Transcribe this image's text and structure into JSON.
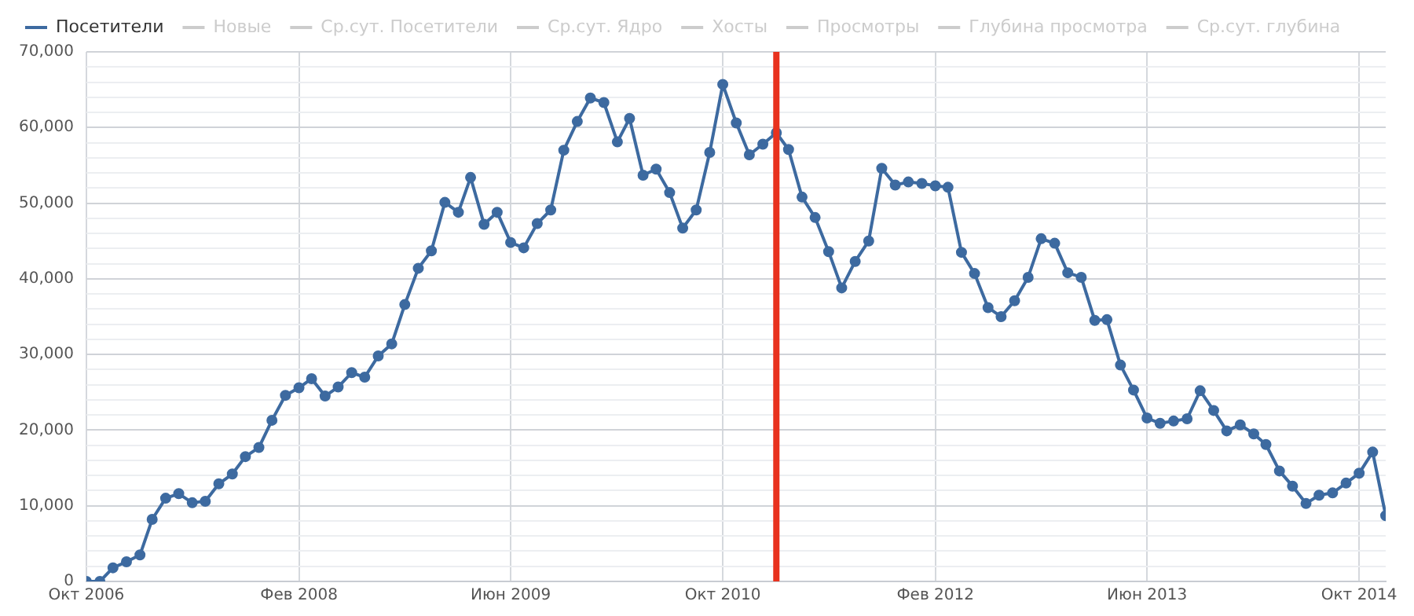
{
  "chart_data": {
    "type": "line",
    "x": [
      "2006-10",
      "2006-11",
      "2006-12",
      "2007-01",
      "2007-02",
      "2007-03",
      "2007-04",
      "2007-05",
      "2007-06",
      "2007-07",
      "2007-08",
      "2007-09",
      "2007-10",
      "2007-11",
      "2007-12",
      "2008-01",
      "2008-02",
      "2008-03",
      "2008-04",
      "2008-05",
      "2008-06",
      "2008-07",
      "2008-08",
      "2008-09",
      "2008-10",
      "2008-11",
      "2008-12",
      "2009-01",
      "2009-02",
      "2009-03",
      "2009-04",
      "2009-05",
      "2009-06",
      "2009-07",
      "2009-08",
      "2009-09",
      "2009-10",
      "2009-11",
      "2009-12",
      "2010-01",
      "2010-02",
      "2010-03",
      "2010-04",
      "2010-05",
      "2010-06",
      "2010-07",
      "2010-08",
      "2010-09",
      "2010-10",
      "2010-11",
      "2010-12",
      "2011-01",
      "2011-02",
      "2011-03",
      "2011-04",
      "2011-05",
      "2011-06",
      "2011-07",
      "2011-08",
      "2011-09",
      "2011-10",
      "2011-11",
      "2011-12",
      "2012-01",
      "2012-02",
      "2012-03",
      "2012-04",
      "2012-05",
      "2012-06",
      "2012-07",
      "2012-08",
      "2012-09",
      "2012-10",
      "2012-11",
      "2012-12",
      "2013-01",
      "2013-02",
      "2013-03",
      "2013-04",
      "2013-05",
      "2013-06",
      "2013-07",
      "2013-08",
      "2013-09",
      "2013-10",
      "2013-11",
      "2013-12",
      "2014-01",
      "2014-02",
      "2014-03",
      "2014-04",
      "2014-05",
      "2014-06",
      "2014-07",
      "2014-08",
      "2014-09",
      "2014-10",
      "2014-11",
      "2014-12"
    ],
    "series": [
      {
        "name": "Посетители",
        "color": "#3d6aa0",
        "values": [
          0,
          0,
          1800,
          2600,
          3500,
          8200,
          11000,
          11600,
          10400,
          10600,
          12900,
          14200,
          16500,
          17700,
          21300,
          24600,
          25600,
          26800,
          24500,
          25700,
          27600,
          27000,
          29800,
          31400,
          36600,
          41400,
          43700,
          50100,
          48800,
          53400,
          47200,
          48800,
          44800,
          44100,
          47300,
          49100,
          57000,
          60800,
          63900,
          63300,
          58100,
          61200,
          53700,
          54500,
          51400,
          46700,
          49100,
          56700,
          65700,
          60600,
          56400,
          57800,
          59300,
          57100,
          50800,
          48100,
          43600,
          38800,
          42300,
          45000,
          54600,
          52400,
          52800,
          52600,
          52300,
          52100,
          43500,
          40700,
          36200,
          35000,
          37100,
          40200,
          45300,
          44700,
          40800,
          40200,
          34500,
          34600,
          28600,
          25300,
          21600,
          20900,
          21200,
          21500,
          25200,
          22600,
          19900,
          20700,
          19500,
          18100,
          14600,
          12600,
          10300,
          11400,
          11700,
          13000,
          14300,
          17100,
          8700
        ]
      },
      {
        "name": "Новые",
        "color": "#cccccc",
        "values": [
          null,
          null,
          null,
          null,
          null,
          null,
          null,
          null,
          null,
          null,
          null,
          null,
          null,
          null,
          null,
          null,
          null,
          null,
          null,
          null,
          null,
          null,
          null,
          null,
          null,
          null,
          null,
          null,
          null,
          null,
          null,
          null,
          null,
          null,
          null,
          null,
          null,
          null,
          null,
          null,
          null,
          null,
          null,
          null,
          null,
          null,
          null,
          null,
          null,
          null,
          null,
          null,
          null,
          null,
          null,
          null,
          null,
          null,
          null,
          null,
          null,
          null,
          null,
          null,
          null,
          null,
          null,
          null,
          null,
          null,
          null,
          null,
          null,
          null,
          null,
          null,
          null,
          null,
          null,
          null,
          null,
          null,
          null,
          null,
          null,
          null,
          null,
          null,
          null,
          null,
          null,
          null,
          null,
          null,
          null,
          null,
          null,
          null,
          null
        ]
      },
      {
        "name": "Ср.сут. Посетители",
        "color": "#cccccc",
        "values": [
          null,
          null,
          null,
          null,
          null,
          null,
          null,
          null,
          null,
          null,
          null,
          null,
          null,
          null,
          null,
          null,
          null,
          null,
          null,
          null,
          null,
          null,
          null,
          null,
          null,
          null,
          null,
          null,
          null,
          null,
          null,
          null,
          null,
          null,
          null,
          null,
          null,
          null,
          null,
          null,
          null,
          null,
          null,
          null,
          null,
          null,
          null,
          null,
          null,
          null,
          null,
          null,
          null,
          null,
          null,
          null,
          null,
          null,
          null,
          null,
          null,
          null,
          null,
          null,
          null,
          null,
          null,
          null,
          null,
          null,
          null,
          null,
          null,
          null,
          null,
          null,
          null,
          null,
          null,
          null,
          null,
          null,
          null,
          null,
          null,
          null,
          null,
          null,
          null,
          null,
          null,
          null,
          null,
          null,
          null,
          null,
          null,
          null,
          null
        ]
      },
      {
        "name": "Ср.сут. Ядро",
        "color": "#cccccc",
        "values": [
          null,
          null,
          null,
          null,
          null,
          null,
          null,
          null,
          null,
          null,
          null,
          null,
          null,
          null,
          null,
          null,
          null,
          null,
          null,
          null,
          null,
          null,
          null,
          null,
          null,
          null,
          null,
          null,
          null,
          null,
          null,
          null,
          null,
          null,
          null,
          null,
          null,
          null,
          null,
          null,
          null,
          null,
          null,
          null,
          null,
          null,
          null,
          null,
          null,
          null,
          null,
          null,
          null,
          null,
          null,
          null,
          null,
          null,
          null,
          null,
          null,
          null,
          null,
          null,
          null,
          null,
          null,
          null,
          null,
          null,
          null,
          null,
          null,
          null,
          null,
          null,
          null,
          null,
          null,
          null,
          null,
          null,
          null,
          null,
          null,
          null,
          null,
          null,
          null,
          null,
          null,
          null,
          null,
          null,
          null,
          null,
          null,
          null,
          null
        ]
      },
      {
        "name": "Хосты",
        "color": "#cccccc",
        "values": [
          null,
          null,
          null,
          null,
          null,
          null,
          null,
          null,
          null,
          null,
          null,
          null,
          null,
          null,
          null,
          null,
          null,
          null,
          null,
          null,
          null,
          null,
          null,
          null,
          null,
          null,
          null,
          null,
          null,
          null,
          null,
          null,
          null,
          null,
          null,
          null,
          null,
          null,
          null,
          null,
          null,
          null,
          null,
          null,
          null,
          null,
          null,
          null,
          null,
          null,
          null,
          null,
          null,
          null,
          null,
          null,
          null,
          null,
          null,
          null,
          null,
          null,
          null,
          null,
          null,
          null,
          null,
          null,
          null,
          null,
          null,
          null,
          null,
          null,
          null,
          null,
          null,
          null,
          null,
          null,
          null,
          null,
          null,
          null,
          null,
          null,
          null,
          null,
          null,
          null,
          null,
          null,
          null,
          null,
          null,
          null,
          null,
          null,
          null
        ]
      },
      {
        "name": "Просмотры",
        "color": "#cccccc",
        "values": [
          null,
          null,
          null,
          null,
          null,
          null,
          null,
          null,
          null,
          null,
          null,
          null,
          null,
          null,
          null,
          null,
          null,
          null,
          null,
          null,
          null,
          null,
          null,
          null,
          null,
          null,
          null,
          null,
          null,
          null,
          null,
          null,
          null,
          null,
          null,
          null,
          null,
          null,
          null,
          null,
          null,
          null,
          null,
          null,
          null,
          null,
          null,
          null,
          null,
          null,
          null,
          null,
          null,
          null,
          null,
          null,
          null,
          null,
          null,
          null,
          null,
          null,
          null,
          null,
          null,
          null,
          null,
          null,
          null,
          null,
          null,
          null,
          null,
          null,
          null,
          null,
          null,
          null,
          null,
          null,
          null,
          null,
          null,
          null,
          null,
          null,
          null,
          null,
          null,
          null,
          null,
          null,
          null,
          null,
          null,
          null,
          null,
          null,
          null
        ]
      },
      {
        "name": "Глубина просмотра",
        "color": "#cccccc",
        "values": [
          null,
          null,
          null,
          null,
          null,
          null,
          null,
          null,
          null,
          null,
          null,
          null,
          null,
          null,
          null,
          null,
          null,
          null,
          null,
          null,
          null,
          null,
          null,
          null,
          null,
          null,
          null,
          null,
          null,
          null,
          null,
          null,
          null,
          null,
          null,
          null,
          null,
          null,
          null,
          null,
          null,
          null,
          null,
          null,
          null,
          null,
          null,
          null,
          null,
          null,
          null,
          null,
          null,
          null,
          null,
          null,
          null,
          null,
          null,
          null,
          null,
          null,
          null,
          null,
          null,
          null,
          null,
          null,
          null,
          null,
          null,
          null,
          null,
          null,
          null,
          null,
          null,
          null,
          null,
          null,
          null,
          null,
          null,
          null,
          null,
          null,
          null,
          null,
          null,
          null,
          null,
          null,
          null,
          null,
          null,
          null,
          null,
          null,
          null
        ]
      },
      {
        "name": "Ср.сут. глубина",
        "color": "#cccccc",
        "values": [
          null,
          null,
          null,
          null,
          null,
          null,
          null,
          null,
          null,
          null,
          null,
          null,
          null,
          null,
          null,
          null,
          null,
          null,
          null,
          null,
          null,
          null,
          null,
          null,
          null,
          null,
          null,
          null,
          null,
          null,
          null,
          null,
          null,
          null,
          null,
          null,
          null,
          null,
          null,
          null,
          null,
          null,
          null,
          null,
          null,
          null,
          null,
          null,
          null,
          null,
          null,
          null,
          null,
          null,
          null,
          null,
          null,
          null,
          null,
          null,
          null,
          null,
          null,
          null,
          null,
          null,
          null,
          null,
          null,
          null,
          null,
          null,
          null,
          null,
          null,
          null,
          null,
          null,
          null,
          null,
          null,
          null,
          null,
          null,
          null,
          null,
          null,
          null,
          null,
          null,
          null,
          null,
          null,
          null,
          null,
          null,
          null,
          null,
          null
        ]
      }
    ],
    "xlim": [
      "2006-10",
      "2014-12"
    ],
    "xticks": [
      {
        "value": "2006-10",
        "label": "Окт 2006"
      },
      {
        "value": "2008-02",
        "label": "Фев 2008"
      },
      {
        "value": "2009-06",
        "label": "Июн 2009"
      },
      {
        "value": "2010-10",
        "label": "Окт 2010"
      },
      {
        "value": "2012-02",
        "label": "Фев 2012"
      },
      {
        "value": "2013-06",
        "label": "Июн 2013"
      },
      {
        "value": "2014-10",
        "label": "Окт 2014"
      }
    ],
    "ylim": [
      0,
      70000
    ],
    "yticks": [
      {
        "value": 0,
        "label": "0"
      },
      {
        "value": 2000,
        "label": null
      },
      {
        "value": 4000,
        "label": null
      },
      {
        "value": 6000,
        "label": null
      },
      {
        "value": 8000,
        "label": null
      },
      {
        "value": 10000,
        "label": "10,000"
      },
      {
        "value": 12000,
        "label": null
      },
      {
        "value": 14000,
        "label": null
      },
      {
        "value": 16000,
        "label": null
      },
      {
        "value": 18000,
        "label": null
      },
      {
        "value": 20000,
        "label": "20,000"
      },
      {
        "value": 22000,
        "label": null
      },
      {
        "value": 24000,
        "label": null
      },
      {
        "value": 26000,
        "label": null
      },
      {
        "value": 28000,
        "label": null
      },
      {
        "value": 30000,
        "label": "30,000"
      },
      {
        "value": 32000,
        "label": null
      },
      {
        "value": 34000,
        "label": null
      },
      {
        "value": 36000,
        "label": null
      },
      {
        "value": 38000,
        "label": null
      },
      {
        "value": 40000,
        "label": "40,000"
      },
      {
        "value": 42000,
        "label": null
      },
      {
        "value": 44000,
        "label": null
      },
      {
        "value": 46000,
        "label": null
      },
      {
        "value": 48000,
        "label": null
      },
      {
        "value": 50000,
        "label": "50,000"
      },
      {
        "value": 52000,
        "label": null
      },
      {
        "value": 54000,
        "label": null
      },
      {
        "value": 56000,
        "label": null
      },
      {
        "value": 58000,
        "label": null
      },
      {
        "value": 60000,
        "label": "60,000"
      },
      {
        "value": 62000,
        "label": null
      },
      {
        "value": 64000,
        "label": null
      },
      {
        "value": 66000,
        "label": null
      },
      {
        "value": 68000,
        "label": null
      },
      {
        "value": 70000,
        "label": "70,000"
      }
    ],
    "ref_lines": [
      {
        "axis": "x",
        "value": "2011-02",
        "color": "#e8321e"
      }
    ],
    "grid": true,
    "legend": "top left",
    "marker": "circle",
    "line_style": "solid"
  }
}
